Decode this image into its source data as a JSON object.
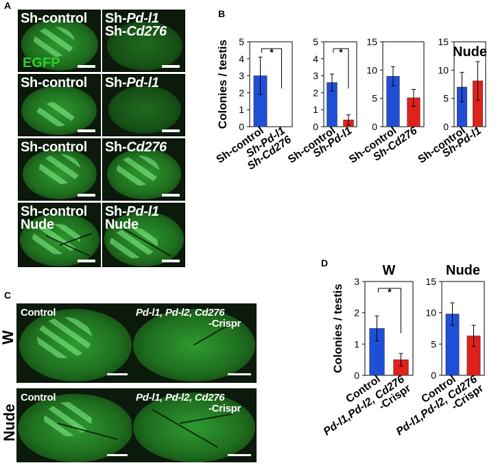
{
  "panels": {
    "A": "A",
    "B": "B",
    "C": "C",
    "D": "D"
  },
  "panelA": {
    "egfp": "EGFP",
    "rows": [
      {
        "left": [
          "Sh-control"
        ],
        "right": [
          "Sh-Pd-l1",
          "Sh-Cd276"
        ]
      },
      {
        "left": [
          "Sh-control"
        ],
        "right": [
          "Sh-Pd-l1"
        ]
      },
      {
        "left": [
          "Sh-control"
        ],
        "right": [
          "Sh-Cd276"
        ]
      },
      {
        "left": [
          "Sh-control",
          "Nude"
        ],
        "right": [
          "Sh-Pd-l1",
          "Nude"
        ]
      }
    ]
  },
  "panelC": {
    "row_labels": [
      "W",
      "Nude"
    ],
    "images": [
      {
        "left": "Control",
        "right_line1": "Pd-l1, Pd-l2, Cd276",
        "right_line2": "-Crispr"
      },
      {
        "left": "Control",
        "right_line1": "Pd-l1, Pd-l2, Cd276",
        "right_line2": "-Crispr"
      }
    ]
  },
  "colors": {
    "blue": "#1f4fd6",
    "red": "#e0211c",
    "green_label": "#2ed02e"
  },
  "chart_data": [
    {
      "type": "bar",
      "panel": "B",
      "ylabel": "Colonies / testis",
      "categories": [
        "Sh-control",
        "Sh-Pd-l1 Sh-Cd276"
      ],
      "values": [
        3.0,
        0.0
      ],
      "errors": [
        1.1,
        0.0
      ],
      "ylim": [
        0,
        5
      ],
      "yticks": [
        0,
        1,
        2,
        3,
        4,
        5
      ],
      "significance": "*",
      "title": ""
    },
    {
      "type": "bar",
      "panel": "B",
      "categories": [
        "Sh-control",
        "Sh-Pd-l1"
      ],
      "values": [
        2.6,
        0.4
      ],
      "errors": [
        0.5,
        0.3
      ],
      "ylim": [
        0,
        5
      ],
      "yticks": [
        0,
        1,
        2,
        3,
        4,
        5
      ],
      "significance": "*",
      "title": ""
    },
    {
      "type": "bar",
      "panel": "B",
      "categories": [
        "Sh-control",
        "Sh-Cd276"
      ],
      "values": [
        8.9,
        5.1
      ],
      "errors": [
        1.7,
        1.5
      ],
      "ylim": [
        0,
        15
      ],
      "yticks": [
        0,
        5,
        10,
        15
      ],
      "title": ""
    },
    {
      "type": "bar",
      "panel": "B",
      "categories": [
        "Sh-control",
        "Sh-Pd-l1"
      ],
      "values": [
        7.0,
        8.1
      ],
      "errors": [
        2.6,
        3.4
      ],
      "ylim": [
        0,
        15
      ],
      "yticks": [
        0,
        5,
        10,
        15
      ],
      "title": "Nude"
    },
    {
      "type": "bar",
      "panel": "D",
      "ylabel": "Colonies / testis",
      "categories": [
        "Control",
        "Pd-l1,Pd-l2, Cd276 -Crispr"
      ],
      "values": [
        1.5,
        0.5
      ],
      "errors": [
        0.4,
        0.2
      ],
      "ylim": [
        0,
        3
      ],
      "yticks": [
        0,
        1,
        2,
        3
      ],
      "significance": "*",
      "title": "W"
    },
    {
      "type": "bar",
      "panel": "D",
      "categories": [
        "Control",
        "Pd-l1,Pd-l2, Cd276 -Crispr"
      ],
      "values": [
        9.8,
        6.3
      ],
      "errors": [
        1.8,
        1.7
      ],
      "ylim": [
        0,
        15
      ],
      "yticks": [
        0,
        5,
        10,
        15
      ],
      "title": "Nude"
    }
  ]
}
